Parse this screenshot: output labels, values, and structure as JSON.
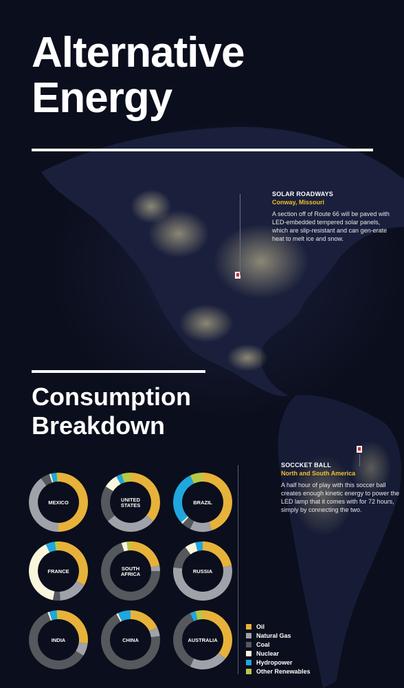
{
  "title": {
    "line1": "Alternative",
    "line2": "Energy"
  },
  "section": {
    "line1": "Consumption",
    "line2": "Breakdown"
  },
  "notes": [
    {
      "title": "SOLAR ROADWAYS",
      "location": "Conway, Missouri",
      "body": "A section off of Route 66 will be paved with LED-embedded tempered solar panels, which are slip-resistant and can gen-erate heat to melt ice and snow."
    },
    {
      "title": "SOCCKET BALL",
      "location": "North and South America",
      "body": "A half hour of play with this soccer ball creates enough kinetic energy to power the LED lamp that it comes with for 72 hours, simply by connecting the two."
    }
  ],
  "colors": {
    "Oil": "#e7b23a",
    "Natural Gas": "#9fa2a8",
    "Coal": "#55585c",
    "Nuclear": "#f8f6dc",
    "Hydropower": "#1fa7de",
    "Other Renewables": "#b6c947"
  },
  "chart_data": {
    "type": "pie",
    "variant": "donut",
    "categories": [
      "Oil",
      "Natural Gas",
      "Coal",
      "Nuclear",
      "Hydropower",
      "Other Renewables"
    ],
    "legend_position": "bottom-right",
    "series": [
      {
        "name": "MEXICO",
        "values": [
          50,
          40,
          5,
          1,
          3,
          1
        ]
      },
      {
        "name": "UNITED STATES",
        "values": [
          36,
          28,
          20,
          8,
          3,
          5
        ]
      },
      {
        "name": "BRAZIL",
        "values": [
          45,
          12,
          5,
          1,
          30,
          7
        ]
      },
      {
        "name": "FRANCE",
        "values": [
          33,
          16,
          4,
          40,
          5,
          2
        ]
      },
      {
        "name": "SOUTH AFRICA",
        "values": [
          22,
          3,
          70,
          3,
          0,
          2
        ]
      },
      {
        "name": "RUSSIA",
        "values": [
          22,
          55,
          13,
          6,
          4,
          0
        ]
      },
      {
        "name": "INDIA",
        "values": [
          27,
          7,
          60,
          1,
          4,
          1
        ]
      },
      {
        "name": "CHINA",
        "values": [
          18,
          5,
          69,
          1,
          7,
          0
        ]
      },
      {
        "name": "AUSTRALIA",
        "values": [
          36,
          21,
          36,
          0,
          3,
          4
        ]
      }
    ]
  }
}
